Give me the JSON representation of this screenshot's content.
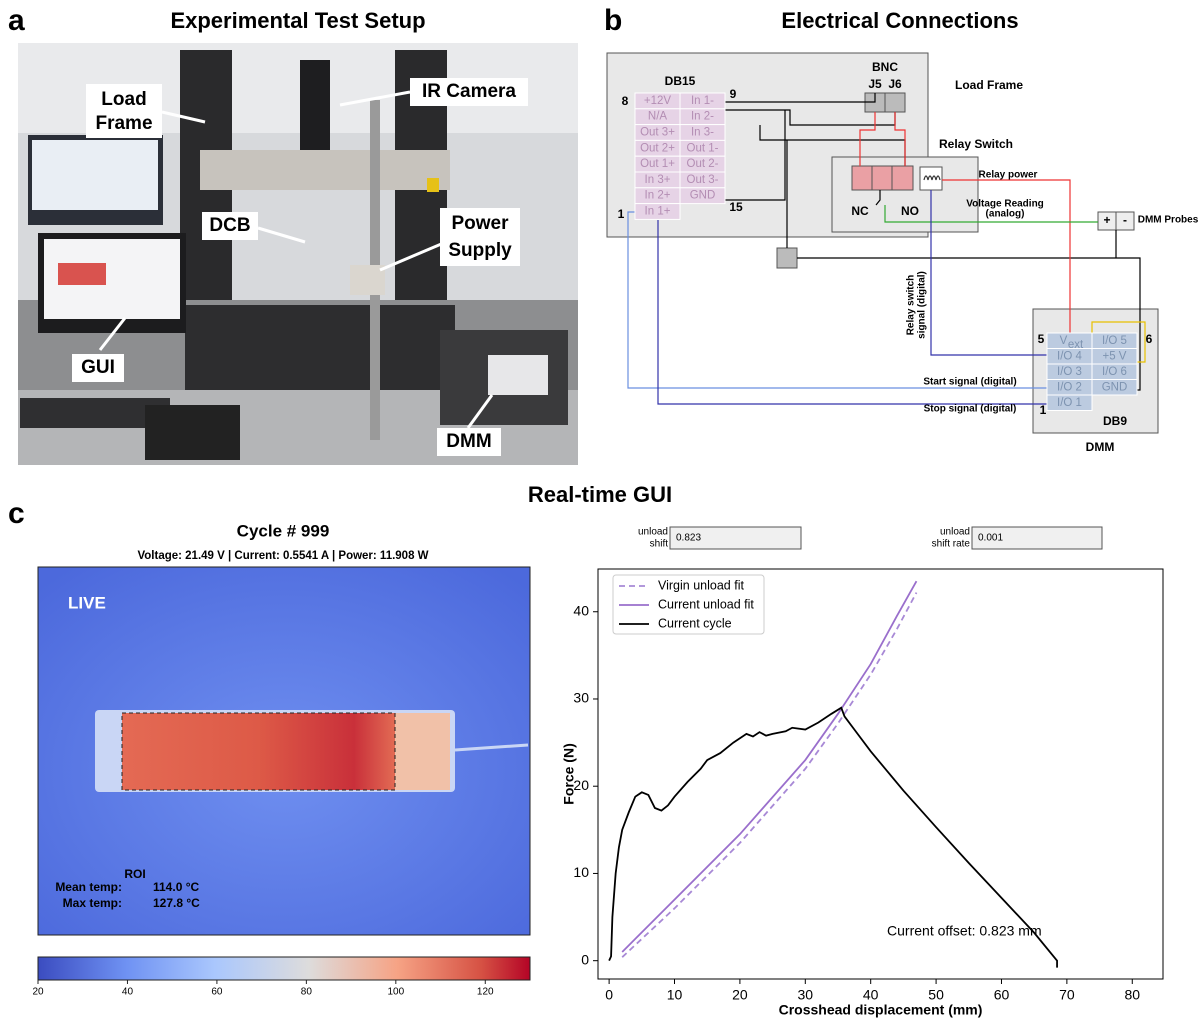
{
  "panel_a": {
    "label": "a",
    "title": "Experimental Test Setup",
    "annotations": [
      [
        "Load",
        "Frame"
      ],
      [
        "IR Camera"
      ],
      [
        "DCB"
      ],
      [
        "Power",
        "Supply"
      ],
      [
        "GUI"
      ],
      [
        "DMM"
      ]
    ]
  },
  "panel_b": {
    "label": "b",
    "title": "Electrical Connections",
    "load_frame": "Load Frame",
    "db15": {
      "name": "DB15",
      "pin_numbers": [
        "8",
        "9",
        "1",
        "15"
      ],
      "rows": [
        [
          "+12V",
          "In 1-"
        ],
        [
          "N/A",
          "In 2-"
        ],
        [
          "Out 3+",
          "In 3-"
        ],
        [
          "Out 2+",
          "Out 1-"
        ],
        [
          "Out 1+",
          "Out 2-"
        ],
        [
          "In 3+",
          "Out 3-"
        ],
        [
          "In 2+",
          "GND"
        ],
        [
          "In 1+"
        ]
      ]
    },
    "bnc": {
      "name": "BNC",
      "jacks": [
        "J5",
        "J6"
      ]
    },
    "relay_switch": {
      "name": "Relay Switch",
      "contacts": [
        "NC",
        "NO"
      ]
    },
    "wires": {
      "relay_power": "Relay power",
      "voltage_reading": [
        "Voltage Reading",
        "(analog)"
      ],
      "relay_switch_signal": [
        "Relay switch",
        "signal (digital)"
      ],
      "start_signal": "Start signal (digital)",
      "stop_signal": "Stop signal (digital)"
    },
    "probes": {
      "name": "DMM Probes",
      "terminals": [
        "+",
        "-"
      ]
    },
    "db9": {
      "name": "DB9",
      "pin_numbers": [
        "5",
        "6",
        "1"
      ],
      "rows": [
        [
          {
            "main": "V",
            "sub": "ext"
          },
          "I/O 5"
        ],
        [
          "I/O 4",
          "+5 V"
        ],
        [
          "I/O 3",
          "I/O 6"
        ],
        [
          "I/O 2",
          "GND"
        ],
        [
          "I/O 1"
        ]
      ]
    },
    "dmm": "DMM"
  },
  "panel_c": {
    "label": "c",
    "title": "Real-time GUI",
    "thermal": {
      "title": "Cycle # 999",
      "status": "Voltage: 21.49 V | Current: 0.5541 A | Power: 11.908 W",
      "live": "LIVE",
      "roi": {
        "title": "ROI",
        "rows": [
          [
            "Mean temp:",
            "114.0 °C"
          ],
          [
            "Max temp:",
            "127.8 °C"
          ]
        ]
      },
      "colorbar": {
        "lim": [
          20,
          130
        ],
        "ticks": [
          20,
          40,
          60,
          80,
          100,
          120
        ]
      }
    },
    "inputs": [
      {
        "label": [
          "unload",
          "shift"
        ],
        "value": "0.823"
      },
      {
        "label": [
          "unload",
          "shift rate"
        ],
        "value": "0.001"
      }
    ]
  },
  "chart_data": {
    "type": "line",
    "x_label": "Crosshead displacement (mm)",
    "y_label": "Force (N)",
    "xlim": [
      -1.7,
      84.7
    ],
    "ylim": [
      -2.1,
      44.9
    ],
    "xticks": [
      0,
      10,
      20,
      30,
      40,
      50,
      60,
      70,
      80
    ],
    "yticks": [
      0,
      10,
      20,
      30,
      40
    ],
    "legend": "upper left",
    "annotation": "Current offset: 0.823 mm",
    "series": [
      {
        "name": "Virgin unload fit",
        "color": "#a889d6",
        "dashed": true,
        "x": [
          2,
          10,
          20,
          30,
          35,
          40,
          44,
          47
        ],
        "values": [
          0.4,
          6,
          13.5,
          22,
          27.2,
          32.8,
          38,
          42.2
        ]
      },
      {
        "name": "Current unload fit",
        "color": "#9a6fcc",
        "dashed": false,
        "x": [
          2,
          10,
          20,
          30,
          35,
          40,
          44,
          47
        ],
        "values": [
          1,
          7,
          14.5,
          23,
          28.3,
          34,
          39.5,
          43.5
        ]
      },
      {
        "name": "Current cycle",
        "color": "#000000",
        "dashed": false,
        "x": [
          0,
          0.3,
          0.5,
          1,
          1.5,
          2,
          3,
          4,
          5,
          6,
          7,
          8,
          9,
          10,
          12,
          14,
          15,
          17,
          19,
          21,
          22,
          23,
          24,
          25,
          27,
          28,
          30,
          32,
          34,
          35.5,
          36,
          38,
          40,
          45,
          50,
          55,
          60,
          65,
          68.5,
          68.5
        ],
        "values": [
          0,
          0.5,
          5,
          10,
          13,
          15,
          17,
          18.8,
          19.3,
          19,
          17.5,
          17.2,
          17.8,
          18.8,
          20.5,
          22,
          23,
          23.8,
          25,
          26,
          25.7,
          26.2,
          25.8,
          26,
          26.3,
          26.7,
          26.5,
          27.3,
          28.3,
          29,
          28,
          26,
          24,
          19.5,
          15.3,
          11.2,
          7.2,
          3.2,
          0,
          -0.8
        ]
      }
    ]
  }
}
